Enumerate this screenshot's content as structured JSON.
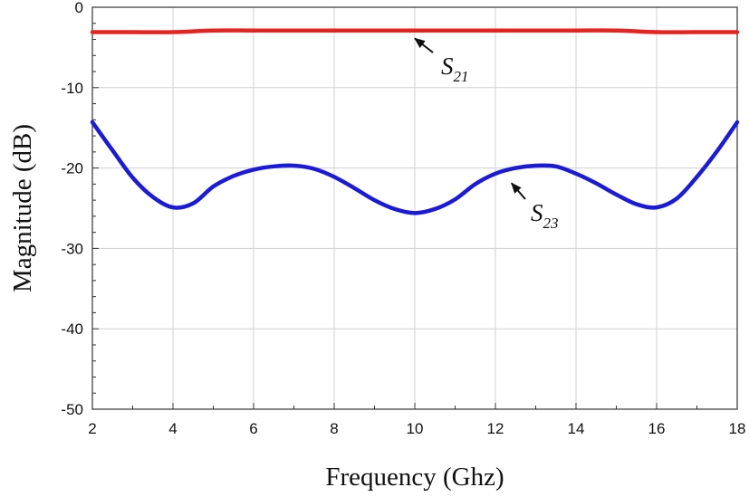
{
  "chart_data": {
    "type": "line",
    "xlabel": "Frequency (Ghz)",
    "ylabel": "Magnitude (dB)",
    "xlim": [
      2,
      18
    ],
    "ylim": [
      -50,
      0
    ],
    "x_ticks": [
      "2",
      "4",
      "6",
      "8",
      "10",
      "12",
      "14",
      "16",
      "18"
    ],
    "y_ticks": [
      "0",
      "-10",
      "-20",
      "-30",
      "-40",
      "-50"
    ],
    "grid": true,
    "series": [
      {
        "name": "S21",
        "color": "#e8231f",
        "x": [
          2,
          3,
          4,
          5,
          6,
          7,
          8,
          9,
          10,
          11,
          12,
          13,
          14,
          15,
          16,
          17,
          18
        ],
        "y": [
          -3.1,
          -3.1,
          -3.1,
          -2.9,
          -2.9,
          -2.9,
          -2.9,
          -2.9,
          -2.9,
          -2.9,
          -2.9,
          -2.9,
          -2.9,
          -2.9,
          -3.1,
          -3.1,
          -3.1
        ]
      },
      {
        "name": "S23",
        "color": "#1a1adc",
        "x": [
          2,
          2.5,
          3,
          3.5,
          4,
          4.5,
          5,
          5.5,
          6,
          6.5,
          7,
          7.5,
          8,
          8.5,
          9,
          9.5,
          10,
          10.5,
          11,
          11.5,
          12,
          12.5,
          13,
          13.5,
          14,
          14.5,
          15,
          15.5,
          16,
          16.5,
          17,
          17.5,
          18
        ],
        "y": [
          -14.3,
          -17.8,
          -21.2,
          -23.6,
          -24.9,
          -24.4,
          -22.3,
          -21.0,
          -20.2,
          -19.8,
          -19.7,
          -20.1,
          -21.1,
          -22.5,
          -24.0,
          -25.1,
          -25.6,
          -25.1,
          -23.9,
          -22.0,
          -20.7,
          -20.0,
          -19.7,
          -19.8,
          -20.7,
          -21.9,
          -23.3,
          -24.5,
          -24.9,
          -23.8,
          -21.1,
          -17.9,
          -14.3
        ]
      }
    ],
    "annotations": [
      {
        "label": "S",
        "subscript": "21",
        "arrow_to_x": 10.0,
        "arrow_to_y": -3.2
      },
      {
        "label": "S",
        "subscript": "23",
        "arrow_to_x": 12.4,
        "arrow_to_y": -21.2
      }
    ]
  }
}
